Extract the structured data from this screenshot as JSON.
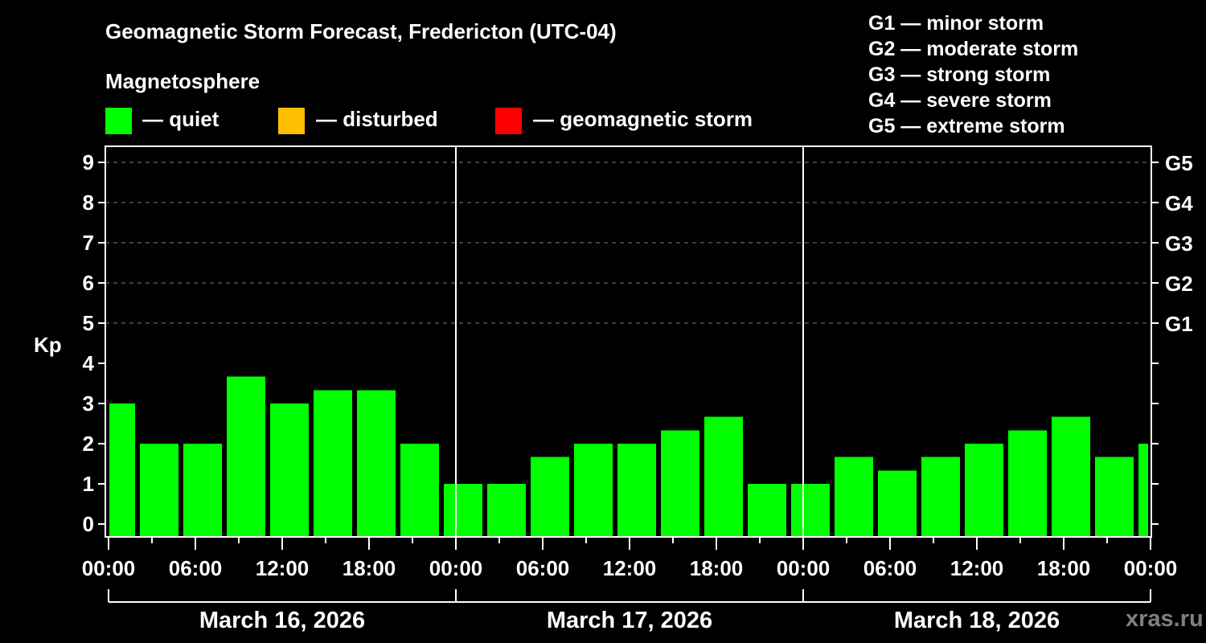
{
  "title": "Geomagnetic Storm Forecast, Fredericton (UTC-04)",
  "subtitle": "Magnetosphere",
  "legend": [
    {
      "label": "— quiet",
      "color": "#00ff00"
    },
    {
      "label": "— disturbed",
      "color": "#ffbf00"
    },
    {
      "label": "— geomagnetic storm",
      "color": "#ff0000"
    }
  ],
  "g_scale": [
    "G1 — minor storm",
    "G2 — moderate storm",
    "G3 — strong storm",
    "G4 — severe storm",
    "G5 — extreme storm"
  ],
  "watermark": "xras.ru",
  "colors": {
    "background": "#000000",
    "quiet": "#00ff00",
    "disturbed": "#ffbf00",
    "storm": "#ff0000",
    "axis": "#ffffff",
    "grid": "#808080",
    "watermark": "#808080"
  },
  "chart_data": {
    "type": "bar",
    "title": "Geomagnetic Storm Forecast, Fredericton (UTC-04)",
    "ylabel": "Kp",
    "xlabel": "",
    "ylim": [
      0,
      9
    ],
    "yticks": [
      0,
      1,
      2,
      3,
      4,
      5,
      6,
      7,
      8,
      9
    ],
    "right_axis_labels": {
      "5": "G1",
      "6": "G2",
      "7": "G3",
      "8": "G4",
      "9": "G5"
    },
    "grid": "dashed horizontal at Kp 5-9",
    "xtick_labels": [
      "00:00",
      "06:00",
      "12:00",
      "18:00",
      "00:00",
      "06:00",
      "12:00",
      "18:00",
      "00:00",
      "06:00",
      "12:00",
      "18:00",
      "00:00"
    ],
    "days": [
      "March 16, 2026",
      "March 17, 2026",
      "March 18, 2026"
    ],
    "categories": [
      "Mar16 00h",
      "Mar16 03h",
      "Mar16 06h",
      "Mar16 09h",
      "Mar16 12h",
      "Mar16 15h",
      "Mar16 18h",
      "Mar16 21h",
      "Mar17 00h",
      "Mar17 03h",
      "Mar17 06h",
      "Mar17 09h",
      "Mar17 12h",
      "Mar17 15h",
      "Mar17 18h",
      "Mar17 21h",
      "Mar18 00h",
      "Mar18 03h",
      "Mar18 06h",
      "Mar18 09h",
      "Mar18 12h",
      "Mar18 15h",
      "Mar18 18h",
      "Mar18 21h",
      "Mar19 00h"
    ],
    "values": [
      3.0,
      2.0,
      2.0,
      3.67,
      3.0,
      3.33,
      3.33,
      2.0,
      1.0,
      1.0,
      1.67,
      2.0,
      2.0,
      2.33,
      2.67,
      1.0,
      1.0,
      1.67,
      1.33,
      1.67,
      2.0,
      2.33,
      2.67,
      1.67,
      2.0
    ],
    "status": [
      "quiet",
      "quiet",
      "quiet",
      "quiet",
      "quiet",
      "quiet",
      "quiet",
      "quiet",
      "quiet",
      "quiet",
      "quiet",
      "quiet",
      "quiet",
      "quiet",
      "quiet",
      "quiet",
      "quiet",
      "quiet",
      "quiet",
      "quiet",
      "quiet",
      "quiet",
      "quiet",
      "quiet",
      "quiet"
    ]
  }
}
